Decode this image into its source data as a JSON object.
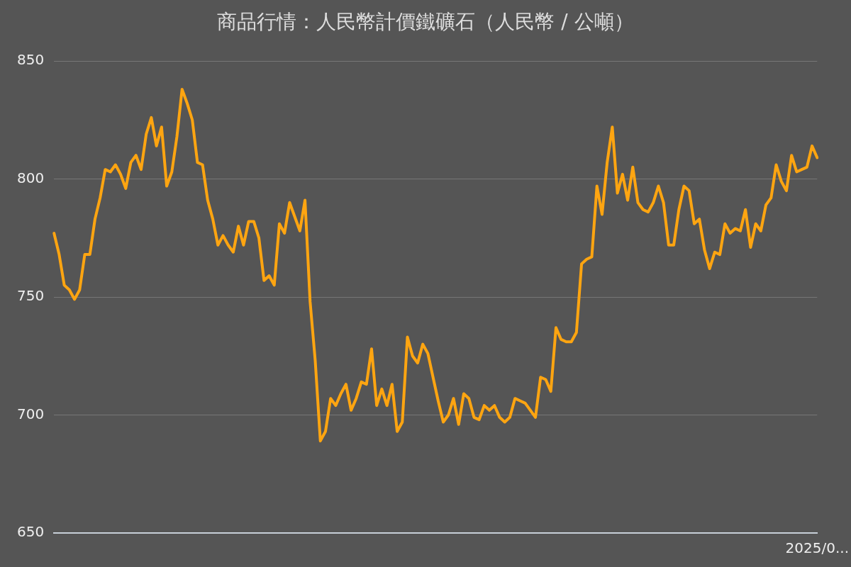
{
  "chart_data": {
    "type": "line",
    "title": "商品行情：人民幣計價鐵礦石（人民幣 / 公噸）",
    "categories": [
      null,
      null,
      null,
      null,
      null,
      null,
      null,
      null,
      null,
      null,
      null,
      null,
      null,
      null,
      null,
      null,
      null,
      null,
      null,
      null,
      null,
      null,
      null,
      null,
      null,
      null,
      null,
      null,
      null,
      null,
      null,
      null,
      null,
      null,
      null,
      null,
      null,
      null,
      null,
      null,
      null,
      null,
      null,
      null,
      null,
      null,
      null,
      null,
      null,
      null,
      null,
      null,
      null,
      null,
      null,
      null,
      null,
      null,
      null,
      null,
      null,
      null,
      null,
      null,
      null,
      null,
      null,
      null,
      null,
      null,
      null,
      null,
      null,
      null,
      null,
      null,
      null,
      null,
      null,
      null,
      null,
      null,
      null,
      null,
      null,
      null,
      null,
      null,
      null,
      null,
      null,
      null,
      null,
      null,
      null,
      null,
      null,
      null,
      null,
      null,
      null,
      null,
      null,
      null,
      null,
      null,
      null,
      null,
      null,
      null,
      null,
      null,
      null,
      null,
      null,
      null,
      null,
      null,
      null,
      null,
      null,
      null,
      null,
      null,
      null,
      null,
      null,
      null,
      null,
      null,
      null,
      null,
      null,
      null,
      null,
      null,
      null,
      null,
      null,
      null,
      null,
      null,
      null,
      null,
      null,
      null,
      null,
      null,
      null,
      "2025/0..."
    ],
    "series": [
      {
        "color": "#ffa511",
        "values": [
          777,
          768,
          755,
          753,
          749,
          753,
          768,
          768,
          783,
          792,
          804,
          803,
          806,
          802,
          796,
          807,
          810,
          804,
          819,
          826,
          814,
          822,
          797,
          803,
          818,
          838,
          832,
          825,
          807,
          806,
          791,
          783,
          772,
          776,
          772,
          769,
          780,
          772,
          782,
          782,
          775,
          757,
          759,
          755,
          781,
          777,
          790,
          784,
          778,
          791,
          748,
          723,
          689,
          693,
          707,
          704,
          709,
          713,
          702,
          707,
          714,
          713,
          728,
          704,
          711,
          704,
          713,
          693,
          697,
          733,
          725,
          722,
          730,
          726,
          716,
          706,
          697,
          700,
          707,
          696,
          709,
          707,
          699,
          698,
          704,
          702,
          704,
          699,
          697,
          699,
          707,
          706,
          705,
          702,
          699,
          716,
          715,
          710,
          737,
          732,
          731,
          731,
          735,
          764,
          766,
          767,
          797,
          785,
          807,
          822,
          794,
          802,
          791,
          805,
          790,
          787,
          786,
          790,
          797,
          790,
          772,
          772,
          787,
          797,
          795,
          781,
          783,
          770,
          762,
          769,
          768,
          781,
          777,
          779,
          778,
          787,
          771,
          781,
          778,
          789,
          792,
          806,
          799,
          795,
          810,
          803,
          804,
          805,
          814,
          809
        ]
      }
    ],
    "ylim": [
      650,
      850
    ],
    "yticks": [
      650,
      700,
      750,
      800,
      850
    ],
    "grid": "y",
    "legend": false,
    "marker": "none",
    "line_style": "solid"
  }
}
